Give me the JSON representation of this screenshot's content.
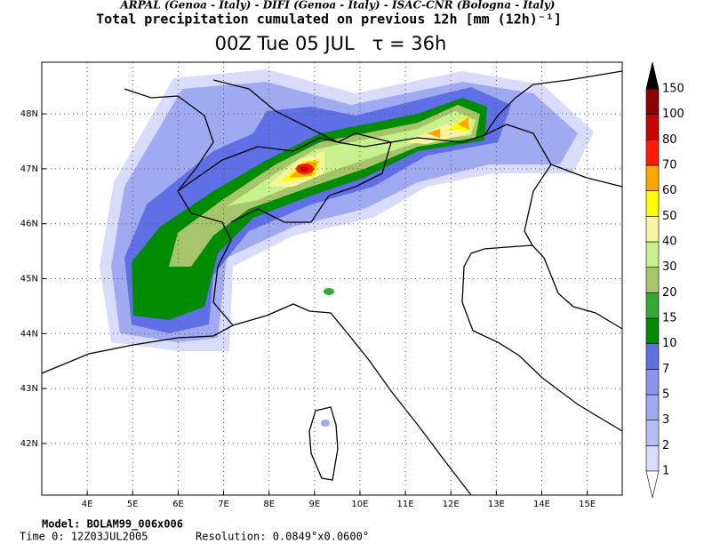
{
  "header": {
    "credits": "ARPAL (Genoa - Italy)  -  DIFI (Genoa - Italy)  -  ISAC-CNR (Bologna - Italy)",
    "title": "Total precipitation cumulated on previous 12h [mm (12h)⁻¹]",
    "subtitle": "00Z Tue 05 JUL   τ = 36h"
  },
  "map": {
    "lonlim": [
      3.0,
      15.77
    ],
    "latlim": [
      41.06,
      48.94
    ],
    "lon_ticks": [
      {
        "value": 4,
        "label": "4E"
      },
      {
        "value": 5,
        "label": "5E"
      },
      {
        "value": 6,
        "label": "6E"
      },
      {
        "value": 7,
        "label": "7E"
      },
      {
        "value": 8,
        "label": "8E"
      },
      {
        "value": 9,
        "label": "9E"
      },
      {
        "value": 10,
        "label": "10E"
      },
      {
        "value": 11,
        "label": "11E"
      },
      {
        "value": 12,
        "label": "12E"
      },
      {
        "value": 13,
        "label": "13E"
      },
      {
        "value": 14,
        "label": "14E"
      },
      {
        "value": 15,
        "label": "15E"
      }
    ],
    "lat_ticks": [
      {
        "value": 42,
        "label": "42N"
      },
      {
        "value": 43,
        "label": "43N"
      },
      {
        "value": 44,
        "label": "44N"
      },
      {
        "value": 45,
        "label": "45N"
      },
      {
        "value": 46,
        "label": "46N"
      },
      {
        "value": 47,
        "label": "47N"
      },
      {
        "value": 48,
        "label": "48N"
      }
    ]
  },
  "colorbar": {
    "levels": [
      1,
      2,
      3,
      5,
      7,
      10,
      15,
      20,
      30,
      40,
      50,
      60,
      70,
      80,
      100,
      150
    ],
    "colors": [
      "#d8dcfa",
      "#b4bef5",
      "#a0aaf0",
      "#8c96ee",
      "#5f6fe6",
      "#008c00",
      "#34a934",
      "#a6c46a",
      "#c8f08c",
      "#f5f5a0",
      "#ffff00",
      "#ffa500",
      "#ff1a00",
      "#c80000",
      "#8c0000"
    ],
    "under_color": "#ffffff",
    "over_color": "#000000"
  },
  "footer": {
    "model": "Model: BOLAM99_006x006",
    "time0": "Time 0: 12Z03JUL2005",
    "resolution": "Resolution: 0.0849°x0.0600°"
  }
}
